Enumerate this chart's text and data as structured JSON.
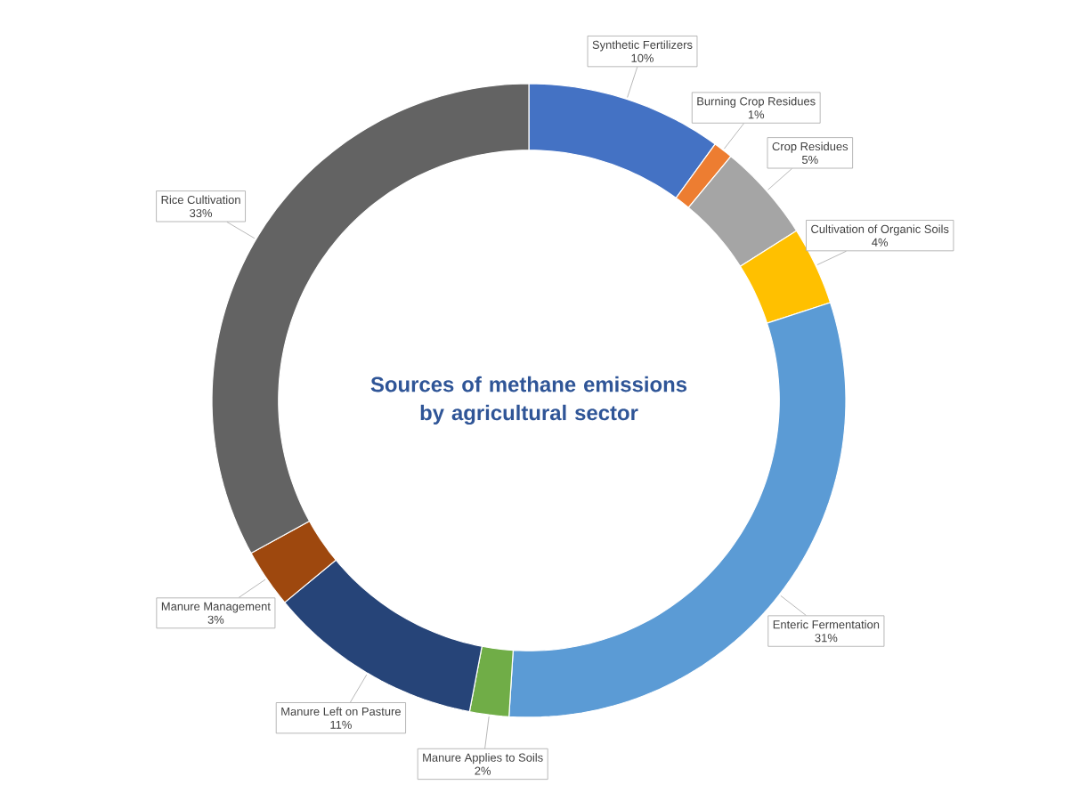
{
  "chart_data": {
    "type": "donut",
    "title": "Sources of methane emissions by agricultural sector",
    "categories": [
      "Synthetic Fertilizers",
      "Burning Crop Residues",
      "Crop Residues",
      "Cultivation of Organic Soils",
      "Enteric Fermentation",
      "Manure Applies to Soils",
      "Manure Left on Pasture",
      "Manure Management",
      "Rice Cultivation"
    ],
    "values": [
      10,
      1,
      5,
      4,
      31,
      2,
      11,
      3,
      33
    ],
    "value_labels": [
      "10%",
      "1%",
      "5%",
      "4%",
      "31%",
      "2%",
      "11%",
      "3%",
      "33%"
    ],
    "colors": [
      "#4472c4",
      "#ed7d31",
      "#a5a5a5",
      "#ffc000",
      "#5b9bd5",
      "#70ad47",
      "#264478",
      "#9e480e",
      "#636363"
    ]
  }
}
